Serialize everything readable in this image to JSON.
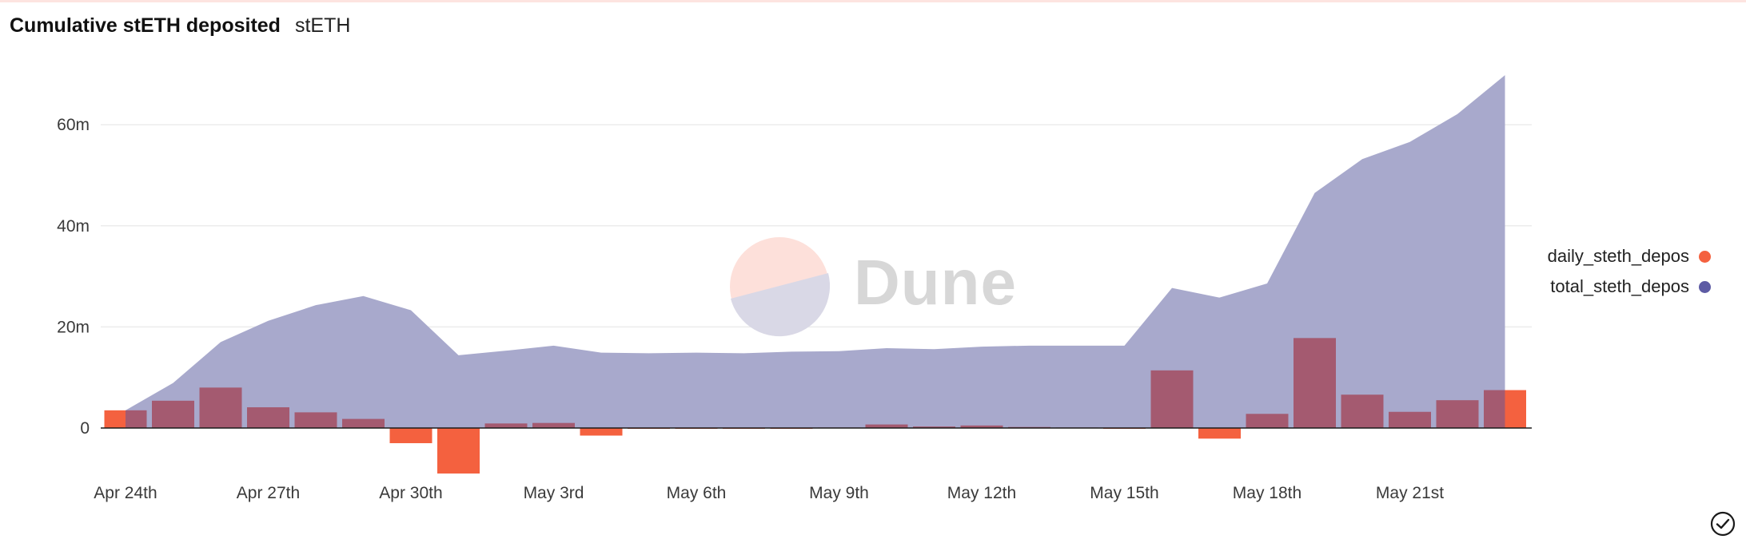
{
  "header": {
    "title": "Cumulative stETH deposited",
    "subtitle": "stETH"
  },
  "watermark": {
    "text": "Dune"
  },
  "legend": {
    "items": [
      {
        "label": "daily_steth_depos",
        "color": "#f4613f"
      },
      {
        "label": "total_steth_depos",
        "color": "#5d5ba4"
      }
    ]
  },
  "colors": {
    "daily_bar": "#f4613f",
    "total_area": "#a8a9cc",
    "overlap_bar": "#a45a70",
    "grid": "#ececec"
  },
  "chart_data": {
    "type": "bar",
    "categories": [
      "Apr 24th",
      "Apr 25th",
      "Apr 26th",
      "Apr 27th",
      "Apr 28th",
      "Apr 29th",
      "Apr 30th",
      "May 1st",
      "May 2nd",
      "May 3rd",
      "May 4th",
      "May 5th",
      "May 6th",
      "May 7th",
      "May 8th",
      "May 9th",
      "May 10th",
      "May 11th",
      "May 12th",
      "May 13th",
      "May 14th",
      "May 15th",
      "May 16th",
      "May 17th",
      "May 18th",
      "May 19th",
      "May 20th",
      "May 21st",
      "May 22nd",
      "May 23rd"
    ],
    "x_tick_labels": [
      "Apr 24th",
      "Apr 27th",
      "Apr 30th",
      "May 3rd",
      "May 6th",
      "May 9th",
      "May 12th",
      "May 15th",
      "May 18th",
      "May 21st"
    ],
    "series": [
      {
        "name": "daily_steth_depos",
        "type": "bar",
        "values": [
          3.5,
          5.4,
          8.0,
          4.1,
          3.1,
          1.8,
          -3.0,
          -9.0,
          0.9,
          1.0,
          -1.5,
          -0.1,
          -0.1,
          -0.1,
          -0.1,
          0.1,
          0.7,
          0.3,
          0.5,
          0.2,
          0.1,
          0.0,
          11.4,
          -2.1,
          2.8,
          17.8,
          6.6,
          3.2,
          5.5,
          7.5
        ]
      },
      {
        "name": "total_steth_depos",
        "type": "area",
        "values": [
          3.5,
          8.9,
          17.0,
          21.2,
          24.3,
          26.1,
          23.3,
          14.4,
          15.3,
          16.3,
          14.9,
          14.8,
          14.9,
          14.8,
          15.1,
          15.2,
          15.8,
          15.6,
          16.1,
          16.3,
          16.3,
          16.3,
          27.7,
          25.8,
          28.6,
          46.5,
          53.2,
          56.6,
          62.1,
          69.8
        ]
      }
    ],
    "y_ticks": [
      0,
      20,
      40,
      60
    ],
    "y_tick_labels": [
      "0",
      "20m",
      "40m",
      "60m"
    ],
    "ylim": [
      -9.5,
      72
    ],
    "units": "millions",
    "grid": true,
    "legend_position": "right"
  }
}
